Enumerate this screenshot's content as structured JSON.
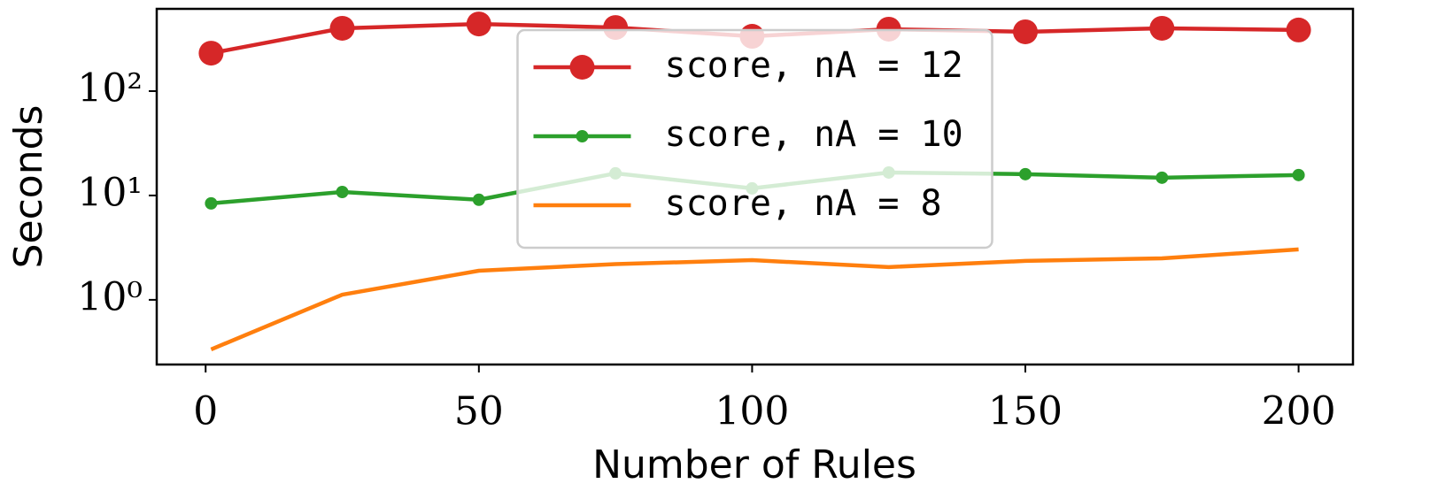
{
  "chart_data": {
    "type": "line",
    "xlabel": "Number of Rules",
    "ylabel": "Seconds",
    "x": [
      1,
      25,
      50,
      75,
      100,
      125,
      150,
      175,
      200
    ],
    "series": [
      {
        "name": "score, nA = 12",
        "color": "#d62728",
        "marker_size": 14,
        "values": [
          231,
          400,
          440,
          407,
          335,
          392,
          370,
          400,
          385
        ]
      },
      {
        "name": "score, nA = 10",
        "color": "#2ca02c",
        "marker_size": 7,
        "values": [
          8.4,
          10.8,
          9.1,
          16.3,
          11.7,
          16.6,
          16.0,
          14.8,
          15.7
        ]
      },
      {
        "name": "score, nA = 8",
        "color": "#ff7f0e",
        "marker_size": 0,
        "values": [
          0.335,
          1.12,
          1.9,
          2.2,
          2.4,
          2.06,
          2.36,
          2.5,
          3.04
        ]
      }
    ],
    "xlim": [
      -8.95,
      209.95
    ],
    "xticks": [
      0,
      50,
      100,
      150,
      200
    ],
    "ylim": [
      0.24,
      614
    ],
    "log_y": true,
    "yticks": [
      {
        "value": 1,
        "label": "10⁰"
      },
      {
        "value": 10,
        "label": "10¹"
      },
      {
        "value": 100,
        "label": "10²"
      }
    ],
    "legend": "upper center"
  }
}
